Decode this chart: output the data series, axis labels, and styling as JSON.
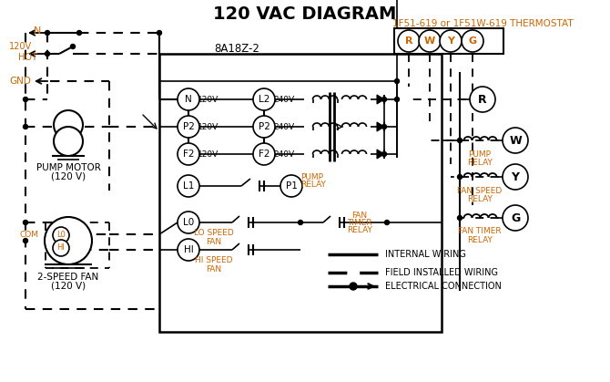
{
  "title": "120 VAC DIAGRAM",
  "bg_color": "#ffffff",
  "orange_color": "#cc6600",
  "thermostat_label": "1F51-619 or 1F51W-619 THERMOSTAT",
  "control_box_label": "8A18Z-2",
  "pump_motor_label1": "PUMP MOTOR",
  "pump_motor_label2": "(120 V)",
  "fan_label1": "2-SPEED FAN",
  "fan_label2": "(120 V)",
  "legend_internal": "INTERNAL WIRING",
  "legend_field": "FIELD INSTALLED WIRING",
  "legend_elec": "ELECTRICAL CONNECTION",
  "relay_labels": [
    "R",
    "W",
    "Y",
    "G"
  ]
}
